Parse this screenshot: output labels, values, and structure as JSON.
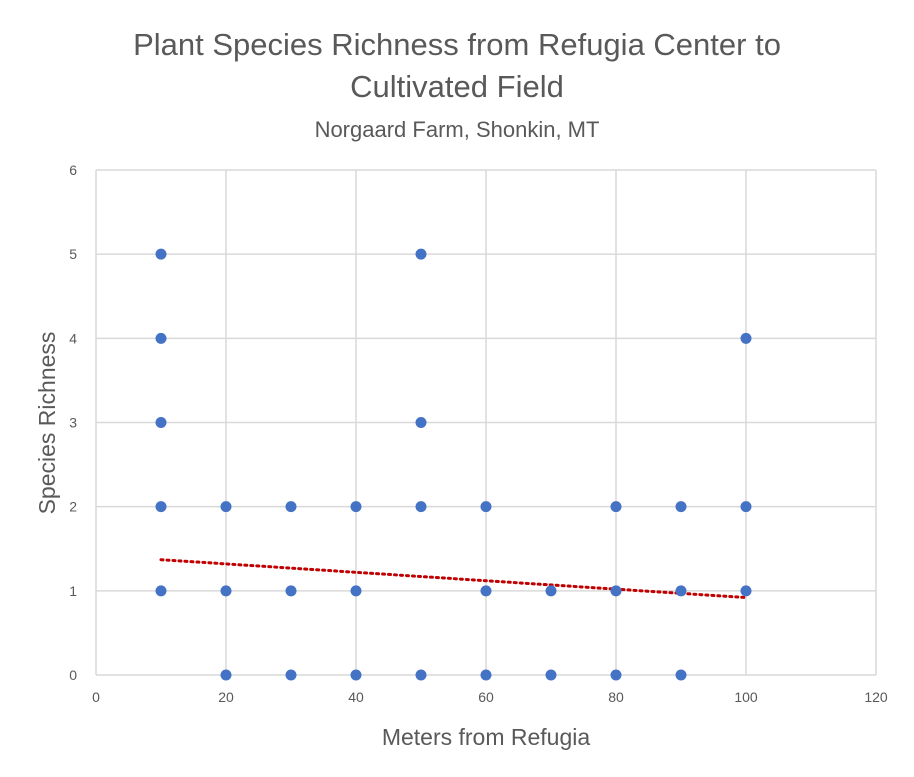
{
  "chart_data": {
    "type": "scatter",
    "title": "Plant Species Richness from Refugia Center to",
    "title_line2": "Cultivated Field",
    "subtitle": "Norgaard Farm, Shonkin, MT",
    "xlabel": "Meters from Refugia",
    "ylabel": "Species Richness",
    "xlim": [
      0,
      120
    ],
    "ylim": [
      0,
      6
    ],
    "xticks": [
      0,
      20,
      40,
      60,
      80,
      100,
      120
    ],
    "yticks": [
      0,
      1,
      2,
      3,
      4,
      5,
      6
    ],
    "grid": true,
    "colors": {
      "points": "#4472c4",
      "trendline": "#c00000",
      "grid": "#d9d9d9",
      "text": "#595959"
    },
    "series": [
      {
        "name": "Species Richness",
        "points": [
          [
            10,
            5
          ],
          [
            10,
            4
          ],
          [
            10,
            3
          ],
          [
            10,
            2
          ],
          [
            10,
            1
          ],
          [
            20,
            2
          ],
          [
            20,
            1
          ],
          [
            20,
            0
          ],
          [
            30,
            2
          ],
          [
            30,
            1
          ],
          [
            30,
            0
          ],
          [
            40,
            2
          ],
          [
            40,
            1
          ],
          [
            40,
            0
          ],
          [
            50,
            5
          ],
          [
            50,
            3
          ],
          [
            50,
            2
          ],
          [
            50,
            0
          ],
          [
            60,
            2
          ],
          [
            60,
            1
          ],
          [
            60,
            0
          ],
          [
            70,
            1
          ],
          [
            70,
            0
          ],
          [
            80,
            2
          ],
          [
            80,
            1
          ],
          [
            80,
            0
          ],
          [
            90,
            2
          ],
          [
            90,
            1
          ],
          [
            90,
            0
          ],
          [
            100,
            4
          ],
          [
            100,
            2
          ],
          [
            100,
            1
          ]
        ]
      }
    ],
    "trendline": {
      "type": "linear",
      "x": [
        10,
        100
      ],
      "y": [
        1.37,
        0.92
      ]
    }
  }
}
